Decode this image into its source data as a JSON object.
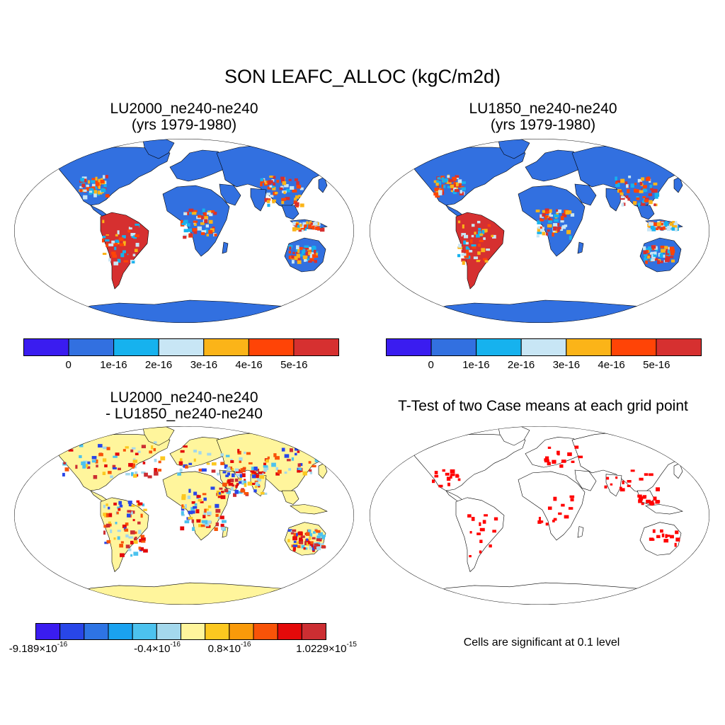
{
  "title": "SON LEAFC_ALLOC (kgC/m2d)",
  "panels": [
    {
      "title_line1": "LU2000_ne240-ne240",
      "title_line2": "(yrs 1979-1980)",
      "colorbar": {
        "colors": [
          "#3a1cf0",
          "#3270e0",
          "#16b2ee",
          "#c8e6f5",
          "#fbb418",
          "#ff4406",
          "#d63030"
        ],
        "labels": [
          "0",
          "1e-16",
          "2e-16",
          "3e-16",
          "4e-16",
          "5e-16"
        ]
      }
    },
    {
      "title_line1": "LU1850_ne240-ne240",
      "title_line2": "(yrs 1979-1980)",
      "colorbar": {
        "colors": [
          "#3a1cf0",
          "#3270e0",
          "#16b2ee",
          "#c8e6f5",
          "#fbb418",
          "#ff4406",
          "#d63030"
        ],
        "labels": [
          "0",
          "1e-16",
          "2e-16",
          "3e-16",
          "4e-16",
          "5e-16"
        ]
      }
    },
    {
      "title_line1": "LU2000_ne240-ne240",
      "title_line2": "- LU1850_ne240-ne240",
      "colorbar": {
        "colors": [
          "#3a1cf0",
          "#2846e8",
          "#2e74e4",
          "#1aa2f0",
          "#4cc2ee",
          "#a4d8ec",
          "#fff59c",
          "#fcc820",
          "#f99a0a",
          "#f85308",
          "#e40a0a",
          "#cc2e32"
        ],
        "labels": [
          {
            "base": "-9.189×10",
            "exp": "-16"
          },
          {
            "base": "-0.4×10",
            "exp": "-16"
          },
          {
            "base": "0.8×10",
            "exp": "-16"
          },
          {
            "base": "1.0229×10",
            "exp": "-15"
          }
        ]
      }
    },
    {
      "title_line1": "T-Test of two Case means at each grid point",
      "note": "Cells are significant at 0.1 level",
      "significant_color": "#ff0000"
    }
  ]
}
